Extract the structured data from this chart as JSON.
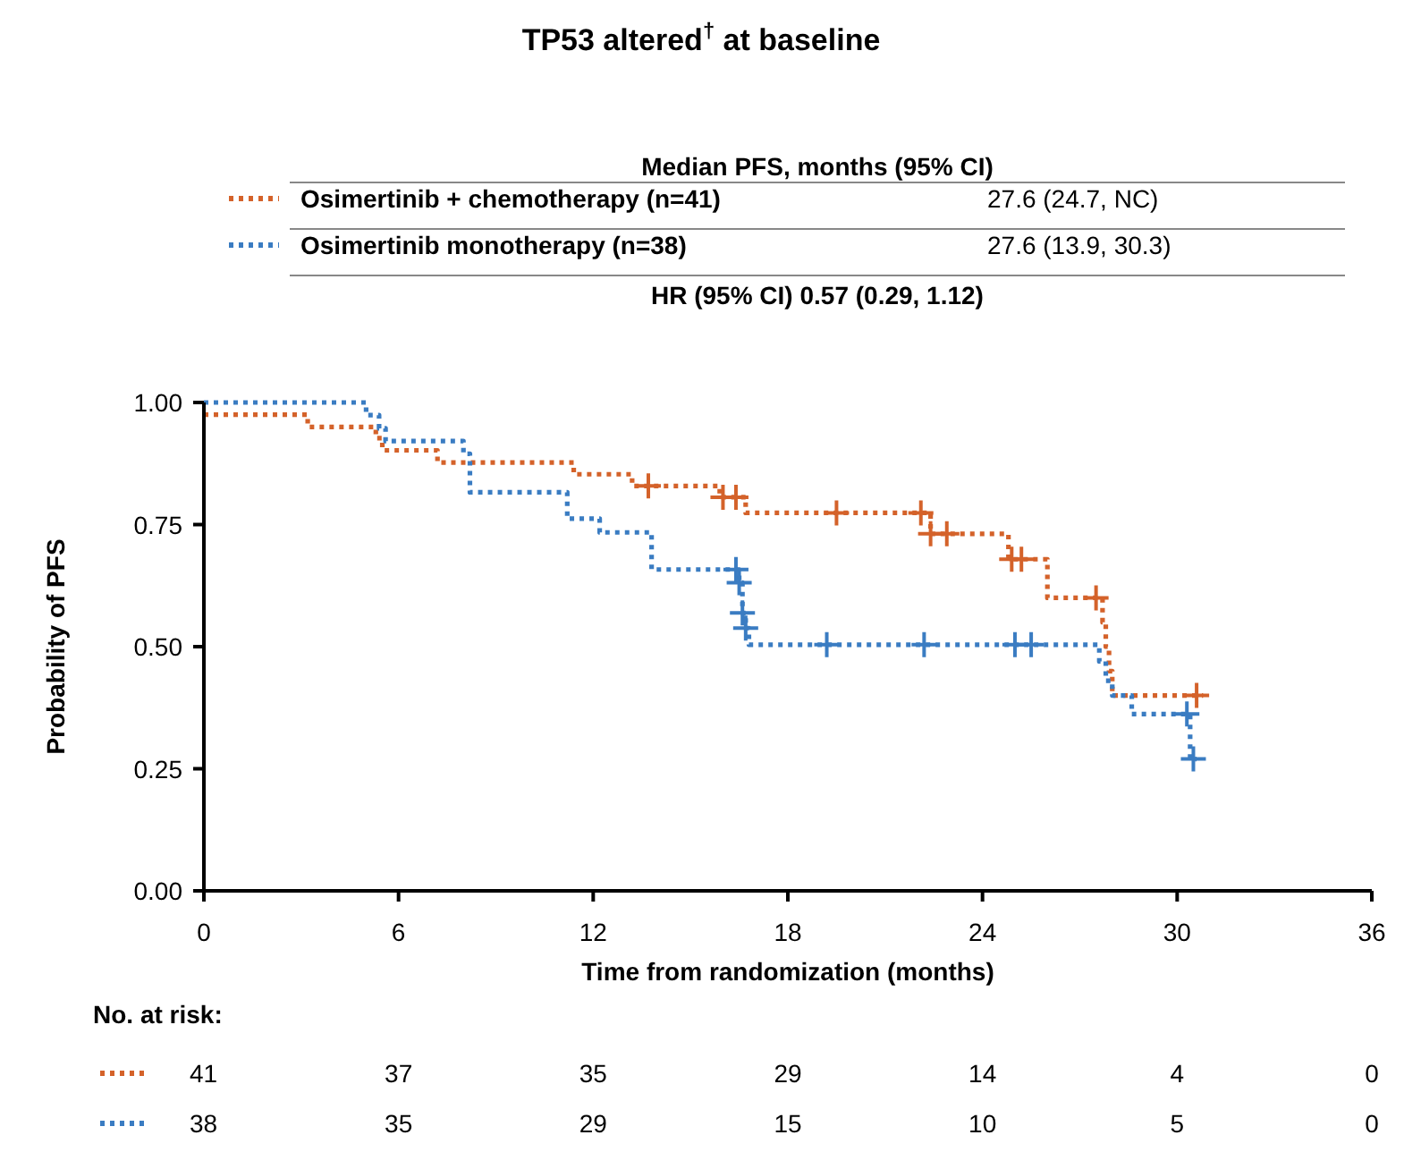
{
  "chart_data": {
    "type": "step",
    "title": "TP53 altered$^{†}$ at baseline",
    "xlabel": "Time from randomization (months)",
    "ylabel": "Probability of PFS",
    "legend_title": "Median PFS, months (95% CI)",
    "legend": "top",
    "line_style": "dotted",
    "grid": false,
    "xlim": [
      0,
      36
    ],
    "xticks": [
      0,
      6,
      12,
      18,
      24,
      30,
      36
    ],
    "ylim": [
      0,
      1
    ],
    "yticks": [
      {
        "value": 0,
        "label": "0.00"
      },
      {
        "value": 0.25,
        "label": "0.25"
      },
      {
        "value": 0.5,
        "label": "0.50"
      },
      {
        "value": 0.75,
        "label": "0.75"
      },
      {
        "value": 1,
        "label": "1.00"
      }
    ],
    "series": [
      {
        "name": "Osimertinib + chemotherapy (n=41)",
        "color": "#d4622a",
        "x": [
          0,
          3.2,
          5.3,
          5.5,
          7.2,
          11.4,
          13.2,
          15.9,
          16.7,
          22.4,
          24.8,
          26.0,
          27.7,
          27.8,
          27.9,
          28.0,
          30.8
        ],
        "values": [
          0.975,
          0.95,
          0.927,
          0.902,
          0.877,
          0.853,
          0.829,
          0.806,
          0.774,
          0.731,
          0.679,
          0.6,
          0.55,
          0.5,
          0.45,
          0.4,
          0.4
        ]
      },
      {
        "name": "Osimertinib monotherapy (n=38)",
        "color": "#3a7cc2",
        "x": [
          0,
          5.0,
          5.4,
          5.6,
          8.0,
          8.2,
          11.2,
          12.2,
          13.8,
          16.5,
          16.6,
          16.7,
          16.8,
          27.6,
          27.8,
          28.0,
          28.6,
          30.4,
          30.6
        ],
        "values": [
          1,
          0.974,
          0.947,
          0.921,
          0.895,
          0.816,
          0.762,
          0.734,
          0.658,
          0.631,
          0.569,
          0.538,
          0.504,
          0.47,
          0.43,
          0.4,
          0.362,
          0.27,
          0.27
        ]
      },
      {
        "type": "scatter",
        "marker": "cross",
        "color": "#d4622a",
        "x": [
          13.7,
          16.0,
          16.4,
          19.5,
          22.1,
          22.4,
          22.9,
          24.9,
          25.2,
          27.5,
          30.6
        ],
        "values": [
          0.829,
          0.806,
          0.806,
          0.774,
          0.774,
          0.731,
          0.731,
          0.679,
          0.679,
          0.6,
          0.4
        ]
      },
      {
        "type": "scatter",
        "marker": "cross",
        "color": "#3a7cc2",
        "x": [
          16.4,
          16.5,
          16.6,
          16.7,
          19.2,
          22.2,
          25.0,
          25.5,
          30.3,
          30.5
        ],
        "values": [
          0.658,
          0.631,
          0.569,
          0.538,
          0.504,
          0.504,
          0.504,
          0.504,
          0.362,
          0.27
        ]
      }
    ],
    "annotations": [
      "27.6 (24.7, NC)",
      "27.6 (13.9, 30.3)",
      "HR (95% CI) 0.57 (0.29, 1.12)",
      "No. at risk:",
      "41 37 35 29 14 4 0",
      "38 35 29 15 10 5 0"
    ]
  }
}
